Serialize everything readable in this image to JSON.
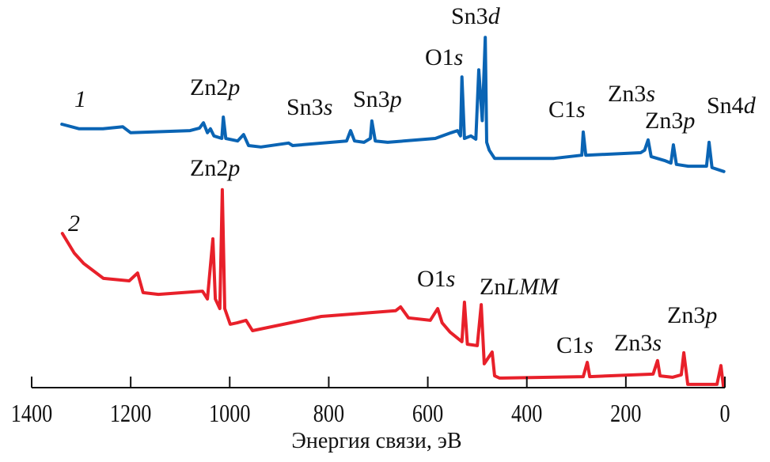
{
  "chart_data": {
    "type": "line",
    "title": "",
    "xlabel": "Энергия связи, эВ",
    "ylabel": "",
    "xlim": [
      1400,
      0
    ],
    "x_reversed": true,
    "x_ticks": [
      1400,
      1200,
      1000,
      800,
      600,
      400,
      200,
      0
    ],
    "y_axis_shown": false,
    "grid": false,
    "series": [
      {
        "name": "1",
        "color": "#0a64b4",
        "points": [
          [
            1339,
            74.0
          ],
          [
            1304,
            72.7
          ],
          [
            1256,
            72.7
          ],
          [
            1216,
            73.3
          ],
          [
            1200,
            71.6
          ],
          [
            1080,
            72.2
          ],
          [
            1061,
            72.9
          ],
          [
            1053,
            74.4
          ],
          [
            1045,
            71.6
          ],
          [
            1039,
            72.7
          ],
          [
            1032,
            70.7
          ],
          [
            1016,
            70.0
          ],
          [
            1013,
            76.0
          ],
          [
            1008,
            70.0
          ],
          [
            984,
            69.3
          ],
          [
            972,
            71.1
          ],
          [
            962,
            68.0
          ],
          [
            937,
            67.6
          ],
          [
            881,
            68.7
          ],
          [
            873,
            68.0
          ],
          [
            764,
            69.3
          ],
          [
            756,
            72.2
          ],
          [
            748,
            69.3
          ],
          [
            729,
            68.9
          ],
          [
            716,
            70.0
          ],
          [
            713,
            74.9
          ],
          [
            706,
            69.3
          ],
          [
            681,
            68.9
          ],
          [
            585,
            70.0
          ],
          [
            553,
            71.6
          ],
          [
            540,
            72.2
          ],
          [
            534,
            70.7
          ],
          [
            531,
            87.3
          ],
          [
            526,
            70.0
          ],
          [
            513,
            70.7
          ],
          [
            503,
            69.8
          ],
          [
            497,
            89.3
          ],
          [
            490,
            75.0
          ],
          [
            484,
            98.4
          ],
          [
            481,
            68.9
          ],
          [
            476,
            66.7
          ],
          [
            465,
            64.4
          ],
          [
            345,
            64.4
          ],
          [
            289,
            65.3
          ],
          [
            286,
            71.8
          ],
          [
            281,
            65.3
          ],
          [
            170,
            66.0
          ],
          [
            162,
            66.7
          ],
          [
            155,
            69.6
          ],
          [
            149,
            64.9
          ],
          [
            122,
            63.8
          ],
          [
            109,
            63.1
          ],
          [
            104,
            68.2
          ],
          [
            98,
            62.7
          ],
          [
            74,
            62.2
          ],
          [
            37,
            62.2
          ],
          [
            32,
            68.9
          ],
          [
            26,
            61.8
          ],
          [
            2,
            60.7
          ]
        ],
        "peak_labels": [
          {
            "text": "Zn2",
            "italic": "p"
          },
          {
            "text": "Sn3",
            "italic": "s"
          },
          {
            "text": "Sn3",
            "italic": "p"
          },
          {
            "text": "O1",
            "italic": "s"
          },
          {
            "text": "Sn3",
            "italic": "d"
          },
          {
            "text": "C1",
            "italic": "s"
          },
          {
            "text": "Zn3",
            "italic": "s"
          },
          {
            "text": "Zn3",
            "italic": "p"
          },
          {
            "text": "Sn4",
            "italic": "d"
          }
        ]
      },
      {
        "name": "2",
        "color": "#e8202a",
        "points": [
          [
            1338,
            43.3
          ],
          [
            1314,
            37.8
          ],
          [
            1295,
            34.9
          ],
          [
            1255,
            30.7
          ],
          [
            1203,
            30.0
          ],
          [
            1186,
            32.2
          ],
          [
            1175,
            26.7
          ],
          [
            1144,
            26.2
          ],
          [
            1055,
            27.1
          ],
          [
            1045,
            24.9
          ],
          [
            1034,
            41.8
          ],
          [
            1029,
            24.9
          ],
          [
            1020,
            22.2
          ],
          [
            1015,
            55.6
          ],
          [
            1010,
            22.2
          ],
          [
            999,
            17.8
          ],
          [
            985,
            18.2
          ],
          [
            967,
            18.9
          ],
          [
            954,
            16.0
          ],
          [
            815,
            20.0
          ],
          [
            665,
            21.6
          ],
          [
            655,
            22.7
          ],
          [
            639,
            19.6
          ],
          [
            595,
            18.9
          ],
          [
            580,
            22.2
          ],
          [
            571,
            18.2
          ],
          [
            555,
            15.6
          ],
          [
            531,
            12.9
          ],
          [
            526,
            24.0
          ],
          [
            520,
            12.2
          ],
          [
            500,
            11.8
          ],
          [
            492,
            23.3
          ],
          [
            486,
            6.7
          ],
          [
            470,
            10.0
          ],
          [
            465,
            3.3
          ],
          [
            455,
            2.7
          ],
          [
            286,
            3.1
          ],
          [
            278,
            7.1
          ],
          [
            273,
            3.1
          ],
          [
            145,
            3.8
          ],
          [
            136,
            7.6
          ],
          [
            131,
            3.3
          ],
          [
            106,
            2.9
          ],
          [
            88,
            3.6
          ],
          [
            83,
            9.8
          ],
          [
            75,
            0.9
          ],
          [
            16,
            0.9
          ],
          [
            8,
            6.2
          ],
          [
            3,
            0.4
          ]
        ],
        "peak_labels": [
          {
            "text": "Zn2",
            "italic": "p"
          },
          {
            "text": "O1",
            "italic": "s"
          },
          {
            "text": "Zn",
            "italic": "LMM"
          },
          {
            "text": "C1",
            "italic": "s"
          },
          {
            "text": "Zn3",
            "italic": "s"
          },
          {
            "text": "Zn3",
            "italic": "p"
          }
        ]
      }
    ]
  }
}
